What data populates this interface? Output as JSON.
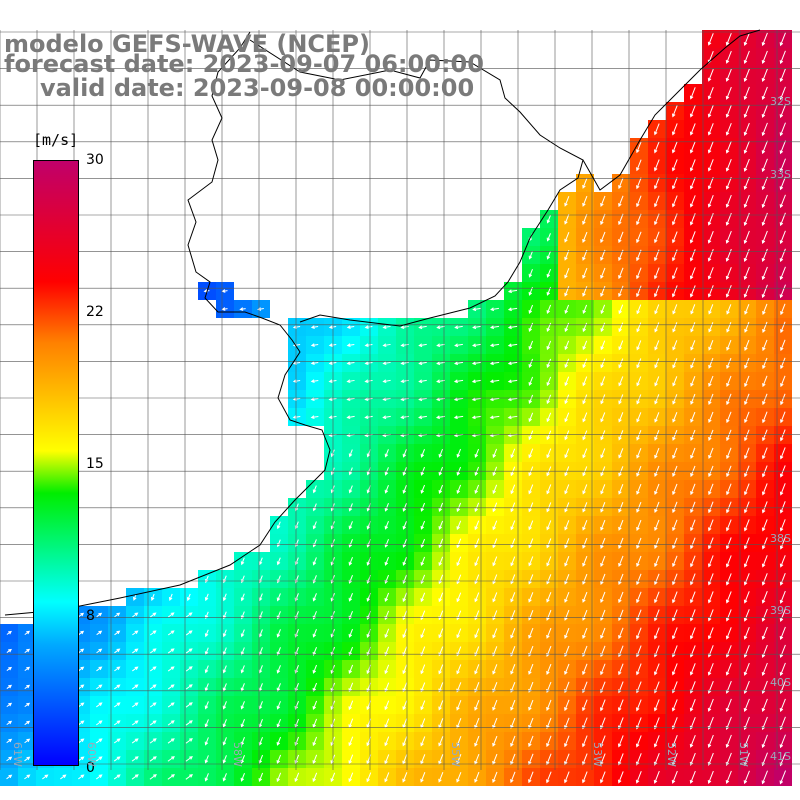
{
  "title": {
    "line1": "modelo GEFS-WAVE (NCEP)",
    "line2": "forecast date: 2023-09-07 06:00:00",
    "line3": "valid date: 2023-09-08 00:00:00"
  },
  "colorbar": {
    "unit": "[m/s]",
    "ticks": [
      "30",
      "22",
      "15",
      "8",
      "0"
    ],
    "colors": [
      "#0000ff",
      "#00aaff",
      "#00ffff",
      "#00ee00",
      "#ffff00",
      "#ff8000",
      "#ff0000",
      "#c0006a"
    ]
  },
  "lat_labels": [
    "32S",
    "33S",
    "38S",
    "39S",
    "40S",
    "41S"
  ],
  "lon_labels": [
    "61W",
    "60W",
    "58W",
    "55W",
    "53W",
    "52W",
    "51W"
  ],
  "chart_data": {
    "type": "heatmap",
    "variable": "wind speed",
    "units": "m/s",
    "range": [
      0,
      30
    ],
    "ticks": [
      0,
      8,
      15,
      22,
      30
    ]
  }
}
